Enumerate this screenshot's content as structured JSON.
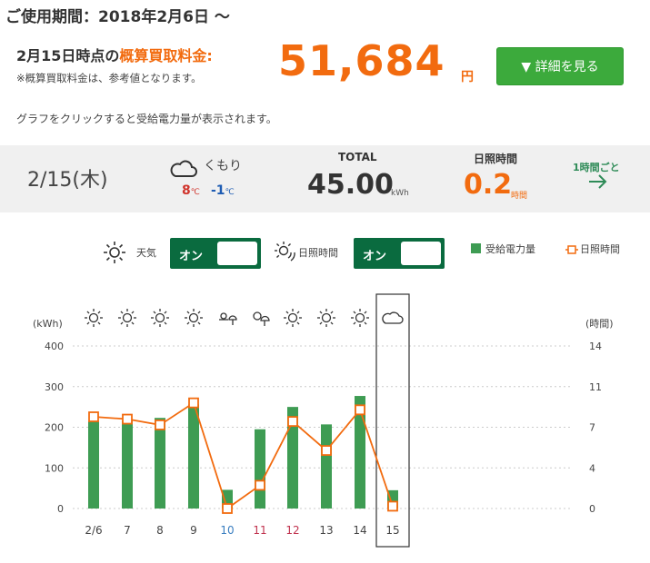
{
  "header": {
    "period": "ご使用期間：2018年2月6日 〜",
    "est_date": "2月15日時点の",
    "est_label": "概算買取料金:",
    "note": "※概算買取料金は、参考値となります。",
    "amount": "51,684",
    "amount_unit": "円",
    "detail_button": "▼ 詳細を見る",
    "hint": "グラフをクリックすると受給電力量が表示されます。"
  },
  "day": {
    "date": "2/15(木)",
    "weather": "くもり",
    "weather_icon": "cloud-icon",
    "temp_high": "8",
    "temp_low": "-1",
    "temp_unit": "℃",
    "total_label": "TOTAL",
    "total_value": "45.00",
    "total_unit": "kWh",
    "sun_label": "日照時間",
    "sun_value": "0.2",
    "sun_unit": "時間",
    "hourly_link": "1時間ごと"
  },
  "toggles": {
    "weather_label": "天気",
    "weather_state": "オン",
    "sunshine_label": "日照時間",
    "sunshine_state": "オン"
  },
  "legend": {
    "bars": "受給電力量",
    "line": "日照時間"
  },
  "colors": {
    "accent": "#f26b0f",
    "bar": "#3e9c53",
    "toggle": "#0a6b3f",
    "button": "#3caa3c"
  },
  "chart_data": {
    "type": "bar",
    "categories": [
      "2/6",
      "7",
      "8",
      "9",
      "10",
      "11",
      "12",
      "13",
      "14",
      "15"
    ],
    "category_colors": [
      "#444",
      "#444",
      "#444",
      "#444",
      "#3a7ec0",
      "#c0324e",
      "#c0324e",
      "#444",
      "#444",
      "#444"
    ],
    "weather_icons": [
      "sun-icon",
      "sun-icon",
      "sun-icon",
      "sun-icon",
      "rain-icon",
      "sun-rain-icon",
      "sun-icon",
      "sun-icon",
      "sun-icon",
      "cloud-icon"
    ],
    "series": [
      {
        "name": "受給電力量",
        "values": [
          215,
          216,
          223,
          256,
          46,
          195,
          250,
          207,
          277,
          45
        ],
        "axis": "left"
      },
      {
        "name": "日照時間",
        "values": [
          7.9,
          7.7,
          7.2,
          9.1,
          0.0,
          2.0,
          7.5,
          5.0,
          8.5,
          0.2
        ],
        "axis": "right"
      }
    ],
    "ylabel_left": "(kWh)",
    "ylabel_right": "(時間)",
    "ylim_left": [
      0,
      400
    ],
    "yticks_left": [
      "0",
      "100",
      "200",
      "300",
      "400"
    ],
    "ylim_right": [
      0,
      14
    ],
    "yticks_right": [
      "0",
      "4",
      "7",
      "11",
      "14"
    ],
    "selected_index": 9,
    "grid": true
  }
}
